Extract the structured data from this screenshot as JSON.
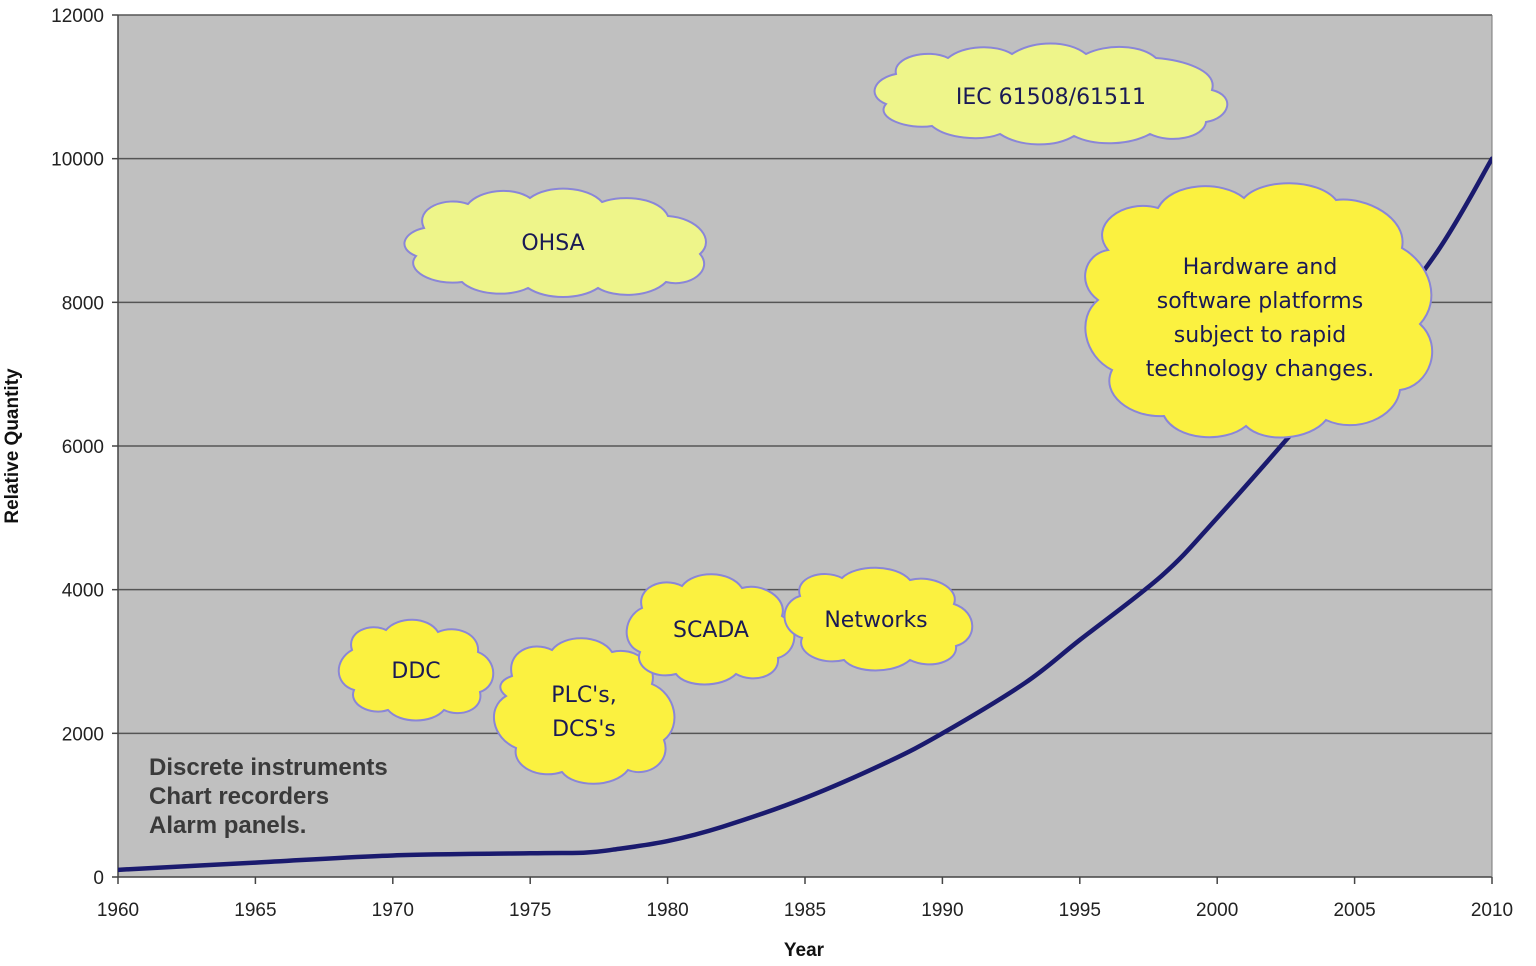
{
  "chart_data": {
    "type": "line",
    "xlabel": "Year",
    "ylabel": "Relative Quantity",
    "xlim": [
      1960,
      2010
    ],
    "ylim": [
      0,
      12000
    ],
    "x_ticks": [
      "1960",
      "1965",
      "1970",
      "1975",
      "1980",
      "1985",
      "1990",
      "1995",
      "2000",
      "2005",
      "2010"
    ],
    "y_ticks": [
      "0",
      "2000",
      "4000",
      "6000",
      "8000",
      "10000",
      "12000"
    ],
    "grid": "horizontal",
    "colors": {
      "plot_background": "#c0c0c0",
      "line": "#1a1a6e",
      "grid": "#555555",
      "cloud_pale": "#eef58a",
      "cloud_bright": "#fbf140",
      "cloud_border": "#8a86d8"
    },
    "series": [
      {
        "x": [
          1960,
          1965,
          1970,
          1975,
          1977,
          1978,
          1980,
          1982,
          1985,
          1988,
          1990,
          1993,
          1995,
          1998,
          2000,
          2003,
          2005,
          2008,
          2010
        ],
        "values": [
          100,
          200,
          300,
          330,
          340,
          380,
          500,
          700,
          1100,
          1600,
          2000,
          2700,
          3300,
          4200,
          5000,
          6300,
          7200,
          8700,
          10000
        ]
      }
    ],
    "annotations": [
      "IEC 61508/61511",
      "OHSA",
      [
        "Hardware and",
        "software platforms",
        "subject to rapid",
        "technology changes."
      ],
      "DDC",
      [
        "PLC's,",
        "DCS's"
      ],
      "SCADA",
      "Networks"
    ],
    "text_note": [
      "Discrete instruments",
      "Chart recorders",
      "Alarm panels."
    ]
  }
}
